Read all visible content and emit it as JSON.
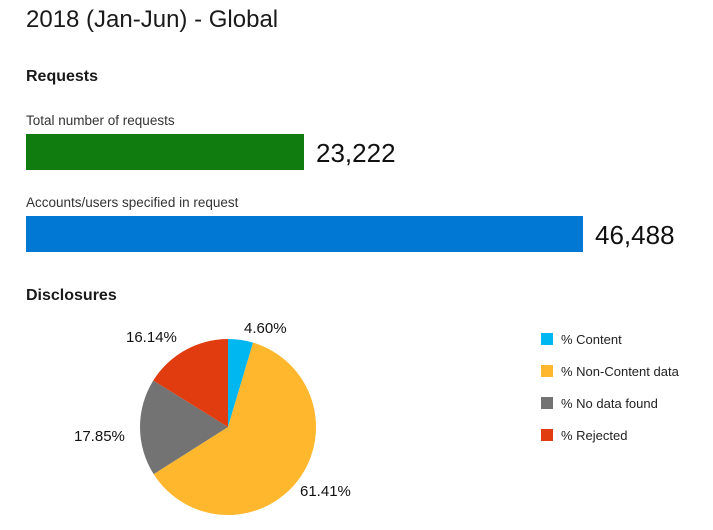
{
  "page_title": "2018 (Jan-Jun) - Global",
  "requests": {
    "title": "Requests",
    "metrics": [
      {
        "label": "Total number of requests",
        "value_text": "23,222",
        "value": 23222,
        "color": "#107c10"
      },
      {
        "label": "Accounts/users specified in request",
        "value_text": "46,488",
        "value": 46488,
        "color": "#0078d4"
      }
    ]
  },
  "disclosures": {
    "title": "Disclosures"
  },
  "chart_data": [
    {
      "type": "bar",
      "orientation": "horizontal",
      "categories": [
        "Total number of requests",
        "Accounts/users specified in request"
      ],
      "values": [
        23222,
        46488
      ],
      "value_labels": [
        "23,222",
        "46,488"
      ],
      "colors": [
        "#107c10",
        "#0078d4"
      ]
    },
    {
      "type": "pie",
      "title": "Disclosures",
      "categories": [
        "% Content",
        "% Non-Content data",
        "% No data found",
        "% Rejected"
      ],
      "values": [
        4.6,
        61.41,
        17.85,
        16.14
      ],
      "value_labels": [
        "4.60%",
        "61.41%",
        "17.85%",
        "16.14%"
      ],
      "colors": [
        "#00b7f0",
        "#ffb82e",
        "#737373",
        "#e03c0f"
      ],
      "legend_position": "right"
    }
  ]
}
